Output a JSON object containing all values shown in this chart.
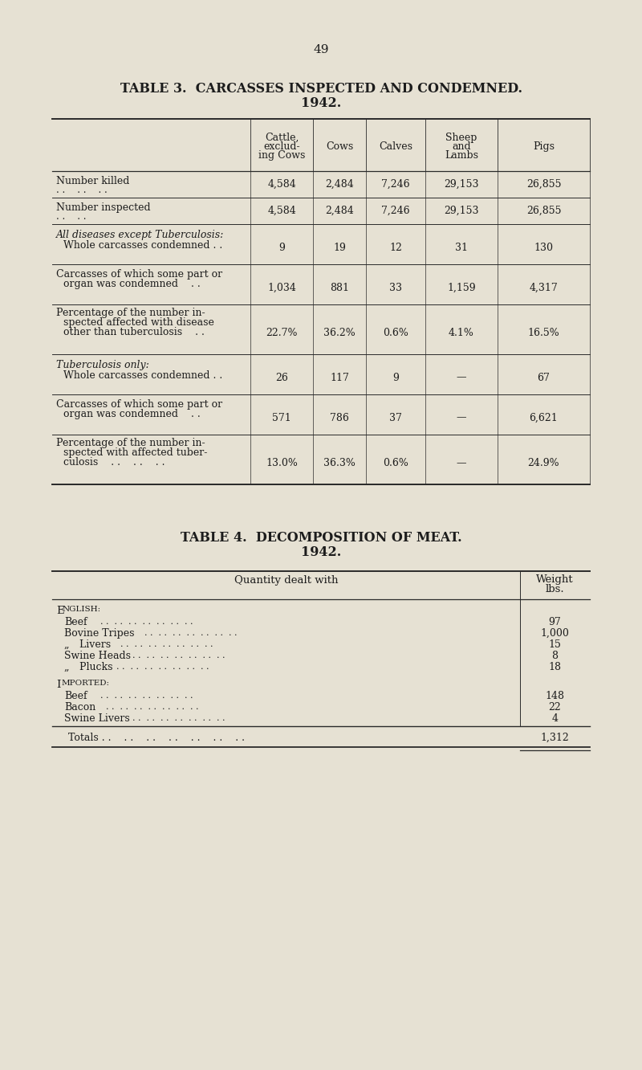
{
  "page_number": "49",
  "bg_color": "#e6e1d3",
  "table3": {
    "title_line1": "TABLE 3.  CARCASSES INSPECTED AND CONDEMNED.",
    "title_line2": "1942.",
    "col_headers": [
      "Cattle,\nexclud-\ning Cows",
      "Cows",
      "Calves",
      "Sheep\nand\nLambs",
      "Pigs"
    ],
    "rows": [
      {
        "values": [
          "4,584",
          "2,484",
          "7,246",
          "29,153",
          "26,855"
        ]
      },
      {
        "values": [
          "4,584",
          "2,484",
          "7,246",
          "29,153",
          "26,855"
        ]
      },
      {
        "values": [
          "9",
          "19",
          "12",
          "31",
          "130"
        ]
      },
      {
        "values": [
          "1,034",
          "881",
          "33",
          "1,159",
          "4,317"
        ]
      },
      {
        "values": [
          "22.7%",
          "36.2%",
          "0.6%",
          "4.1%",
          "16.5%"
        ]
      },
      {
        "values": [
          "26",
          "117",
          "9",
          "—",
          "67"
        ]
      },
      {
        "values": [
          "571",
          "786",
          "37",
          "—",
          "6,621"
        ]
      },
      {
        "values": [
          "13.0%",
          "36.3%",
          "0.6%",
          "—",
          "24.9%"
        ]
      }
    ]
  },
  "table4": {
    "title_line1": "TABLE 4.  DECOMPOSITION OF MEAT.",
    "title_line2": "1942.",
    "eng_values": [
      "97",
      "1,000",
      "15",
      "8",
      "18"
    ],
    "imp_values": [
      "148",
      "22",
      "4"
    ],
    "totals_value": "1,312"
  }
}
